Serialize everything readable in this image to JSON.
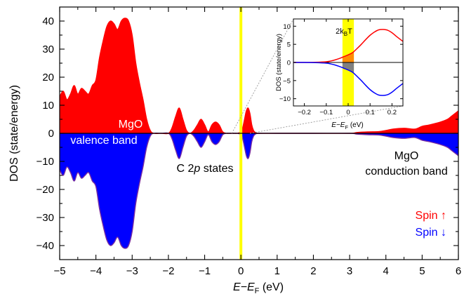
{
  "chart_data": {
    "type": "area",
    "xlabel_main": "E−E",
    "xlabel_sub": "F",
    "xlabel_unit": " (eV)",
    "ylabel": "DOS (state/energy)",
    "xlim": [
      -5,
      6
    ],
    "ylim": [
      -45,
      45
    ],
    "x_ticks": [
      "−5",
      "−4",
      "−3",
      "−2",
      "−1",
      "0",
      "1",
      "2",
      "3",
      "4",
      "5",
      "6"
    ],
    "y_ticks": [
      "40",
      "30",
      "20",
      "10",
      "0",
      "−10",
      "−20",
      "−30",
      "−40"
    ],
    "fermi_level_marker": 0,
    "annotations": {
      "mgo_valence_1": "MgO",
      "mgo_valence_2": "valence band",
      "c2p_pre": "C 2",
      "c2p_italic": "p",
      "c2p_post": " states",
      "mgo_cond_1": "MgO",
      "mgo_cond_2": "conduction band"
    },
    "legend": {
      "up_label": "Spin ↑",
      "down_label": "Spin ↓",
      "placement": "bottom-right"
    },
    "series": [
      {
        "name": "Spin ↑",
        "color": "#ff0000",
        "x": [
          -5.0,
          -4.9,
          -4.8,
          -4.7,
          -4.6,
          -4.5,
          -4.4,
          -4.3,
          -4.2,
          -4.1,
          -4.0,
          -3.9,
          -3.8,
          -3.7,
          -3.6,
          -3.5,
          -3.4,
          -3.3,
          -3.2,
          -3.1,
          -3.0,
          -2.9,
          -2.8,
          -2.7,
          -2.6,
          -2.5,
          -2.4,
          -2.2,
          -2.0,
          -1.9,
          -1.8,
          -1.7,
          -1.6,
          -1.5,
          -1.4,
          -1.3,
          -1.2,
          -1.1,
          -1.0,
          -0.9,
          -0.8,
          -0.7,
          -0.6,
          -0.5,
          -0.4,
          -0.3,
          -0.2,
          -0.1,
          0.0,
          0.05,
          0.1,
          0.15,
          0.2,
          0.25,
          0.3,
          0.35,
          0.4,
          0.5,
          1.0,
          2.0,
          3.0,
          3.2,
          3.5,
          3.8,
          4.0,
          4.2,
          4.5,
          4.8,
          5.0,
          5.2,
          5.5,
          5.7,
          5.8,
          5.9,
          6.0
        ],
        "values": [
          13,
          15,
          12,
          14,
          17,
          14,
          16,
          15,
          14,
          17,
          19,
          27,
          33,
          38,
          40,
          39,
          37,
          40,
          41,
          40,
          35,
          25,
          18,
          12,
          5,
          1,
          0,
          0,
          0,
          2,
          6,
          9,
          5,
          1,
          0,
          1,
          3,
          5,
          3,
          0.5,
          3,
          4,
          3,
          0.5,
          0,
          0,
          0,
          0,
          0.5,
          2,
          5,
          8,
          9,
          7,
          3,
          1,
          0.3,
          0,
          0,
          0,
          0,
          0.3,
          0.5,
          0.6,
          1,
          1.5,
          1.8,
          1.5,
          2.5,
          3,
          4,
          5,
          6,
          7,
          8
        ]
      },
      {
        "name": "Spin ↓",
        "color": "#0000ff",
        "x": [
          -5.0,
          -4.9,
          -4.8,
          -4.7,
          -4.6,
          -4.5,
          -4.4,
          -4.3,
          -4.2,
          -4.1,
          -4.0,
          -3.9,
          -3.8,
          -3.7,
          -3.6,
          -3.5,
          -3.4,
          -3.3,
          -3.2,
          -3.1,
          -3.0,
          -2.9,
          -2.8,
          -2.7,
          -2.6,
          -2.5,
          -2.4,
          -2.2,
          -2.0,
          -1.9,
          -1.8,
          -1.7,
          -1.6,
          -1.5,
          -1.4,
          -1.3,
          -1.2,
          -1.1,
          -1.0,
          -0.9,
          -0.8,
          -0.7,
          -0.6,
          -0.5,
          -0.4,
          -0.3,
          -0.2,
          -0.1,
          0.0,
          0.05,
          0.1,
          0.15,
          0.2,
          0.25,
          0.3,
          0.35,
          0.4,
          0.5,
          1.0,
          2.0,
          3.0,
          3.2,
          3.5,
          3.8,
          4.0,
          4.2,
          4.5,
          4.8,
          5.0,
          5.2,
          5.5,
          5.7,
          5.8,
          5.9,
          6.0
        ],
        "values": [
          -13,
          -15,
          -12,
          -14,
          -17,
          -14,
          -16,
          -15,
          -14,
          -17,
          -19,
          -27,
          -33,
          -38,
          -40,
          -39,
          -37,
          -40,
          -41,
          -40,
          -35,
          -25,
          -18,
          -12,
          -5,
          -1,
          0,
          0,
          0,
          -2,
          -6,
          -9,
          -5,
          -1,
          0,
          -1,
          -3,
          -5,
          -3,
          -0.5,
          -3,
          -4,
          -3,
          -0.5,
          0,
          0,
          0,
          0,
          -0.5,
          -2,
          -5,
          -8,
          -9,
          -7,
          -3,
          -1,
          -0.3,
          0,
          0,
          0,
          0,
          -0.3,
          -0.5,
          -0.6,
          -1,
          -1.5,
          -1.8,
          -1.5,
          -2.5,
          -3,
          -4,
          -5,
          -6,
          -7,
          -8
        ]
      }
    ],
    "inset": {
      "xlabel_main": "E−E",
      "xlabel_sub": "F",
      "xlabel_unit": " (eV)",
      "ylabel": "DOS (state/energy)",
      "xlim": [
        -0.25,
        0.25
      ],
      "ylim": [
        -12,
        12
      ],
      "x_ticks": [
        "−0.2",
        "−0.1",
        "0",
        "0.1",
        "0.2"
      ],
      "y_ticks": [
        "10",
        "5",
        "0",
        "−5",
        "−10"
      ],
      "band_label_pre": "2k",
      "band_label_sub": "B",
      "band_label_post": "T",
      "band_range": [
        -0.026,
        0.026
      ],
      "series": [
        {
          "name": "Spin ↑",
          "color": "#ff0000",
          "x": [
            -0.25,
            -0.2,
            -0.15,
            -0.1,
            -0.08,
            -0.06,
            -0.04,
            -0.02,
            0.0,
            0.02,
            0.04,
            0.06,
            0.08,
            0.1,
            0.12,
            0.14,
            0.16,
            0.18,
            0.2,
            0.22,
            0.25
          ],
          "values": [
            0,
            0,
            0.05,
            0.2,
            0.4,
            0.7,
            1.1,
            1.6,
            2.1,
            2.7,
            3.8,
            5.0,
            6.3,
            7.5,
            8.4,
            9.0,
            9.1,
            8.9,
            8.2,
            7.2,
            5.8
          ]
        },
        {
          "name": "Spin ↓",
          "color": "#0000ff",
          "x": [
            -0.25,
            -0.2,
            -0.15,
            -0.1,
            -0.08,
            -0.06,
            -0.04,
            -0.02,
            0.0,
            0.02,
            0.04,
            0.06,
            0.08,
            0.1,
            0.12,
            0.14,
            0.16,
            0.18,
            0.2,
            0.22,
            0.25
          ],
          "values": [
            0,
            0,
            -0.05,
            -0.2,
            -0.4,
            -0.7,
            -1.1,
            -1.6,
            -2.1,
            -2.7,
            -3.8,
            -5.0,
            -6.3,
            -7.5,
            -8.4,
            -9.0,
            -9.1,
            -8.9,
            -8.2,
            -7.2,
            -5.8
          ]
        }
      ]
    }
  }
}
